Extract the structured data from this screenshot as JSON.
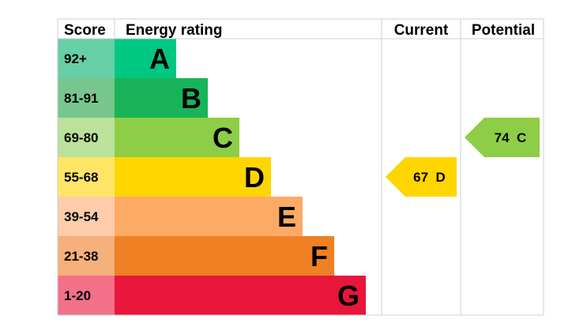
{
  "chart_data": {
    "type": "bar",
    "headers": {
      "score": "Score",
      "rating": "Energy rating",
      "current": "Current",
      "potential": "Potential"
    },
    "bands": [
      {
        "score": "92+",
        "letter": "A",
        "color": "#00c781",
        "score_bg": "#66cfa6"
      },
      {
        "score": "81-91",
        "letter": "B",
        "color": "#19b459",
        "score_bg": "#76c68e"
      },
      {
        "score": "69-80",
        "letter": "C",
        "color": "#8dce46",
        "score_bg": "#bbe19a"
      },
      {
        "score": "55-68",
        "letter": "D",
        "color": "#ffd500",
        "score_bg": "#ffe566"
      },
      {
        "score": "39-54",
        "letter": "E",
        "color": "#fcaa65",
        "score_bg": "#fdccab"
      },
      {
        "score": "21-38",
        "letter": "F",
        "color": "#ef8023",
        "score_bg": "#f5b07b"
      },
      {
        "score": "1-20",
        "letter": "G",
        "color": "#e9153b",
        "score_bg": "#f27189"
      }
    ],
    "current": {
      "value": 67,
      "band": "D",
      "label": "67  D",
      "color": "#ffd500"
    },
    "potential": {
      "value": 74,
      "band": "C",
      "label": "74  C",
      "color": "#8dce46"
    }
  }
}
